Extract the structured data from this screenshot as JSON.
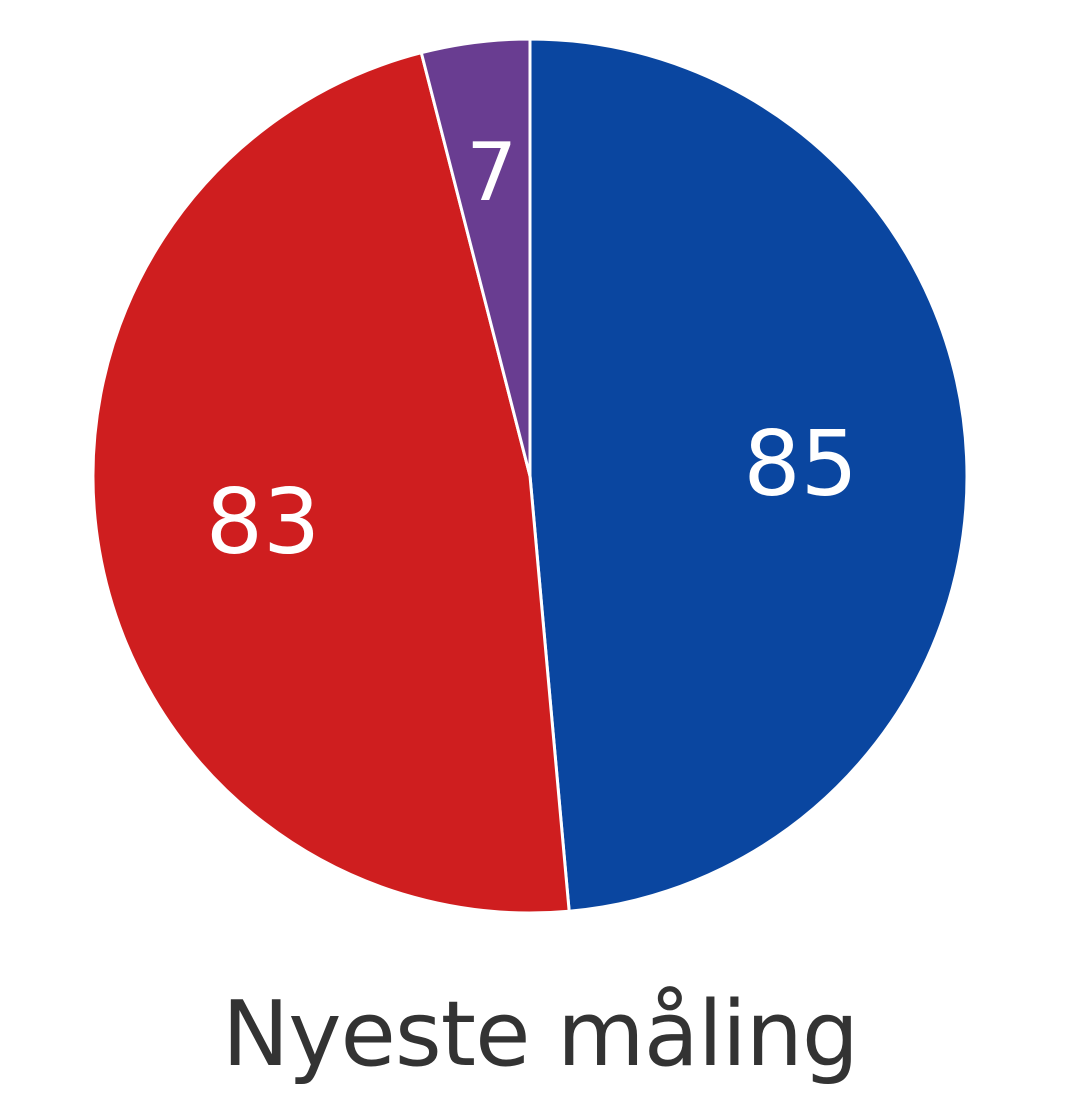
{
  "chart_data": {
    "type": "pie",
    "title": "Nyeste måling",
    "slices": [
      {
        "value": 85,
        "label": "85",
        "color": "#0A46A0"
      },
      {
        "value": 83,
        "label": "83",
        "color": "#CF1E1F"
      },
      {
        "value": 7,
        "label": "7",
        "color": "#693D91"
      }
    ],
    "start": "12 o'clock",
    "direction": "clockwise",
    "slice_separator_color": "#ffffff"
  }
}
